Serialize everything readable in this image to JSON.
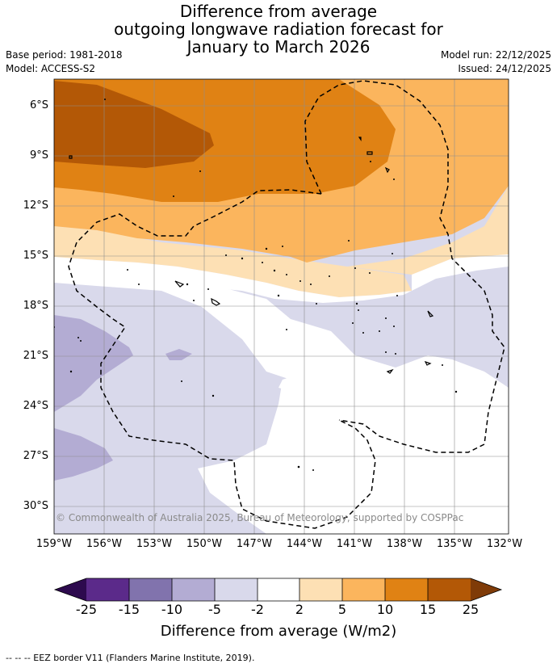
{
  "title": {
    "line1": "Difference from average",
    "line2": "outgoing longwave radiation forecast for",
    "line3": "January to March 2026"
  },
  "meta": {
    "base_period": "Base period: 1981-2018",
    "model": "Model: ACCESS-S2",
    "model_run": "Model run: 22/12/2025",
    "issued": "Issued: 24/12/2025"
  },
  "axes": {
    "latitudes": [
      "6°S",
      "9°S",
      "12°S",
      "15°S",
      "18°S",
      "21°S",
      "24°S",
      "27°S",
      "30°S"
    ],
    "longitudes": [
      "159°W",
      "156°W",
      "153°W",
      "150°W",
      "147°W",
      "144°W",
      "141°W",
      "138°W",
      "135°W",
      "132°W"
    ]
  },
  "copyright": "© Commonwealth of Australia 2025, Bureau of Meteorology, supported by COSPPac",
  "colorbar": {
    "ticks": [
      "-25",
      "-15",
      "-10",
      "-5",
      "-2",
      "2",
      "5",
      "10",
      "15",
      "25"
    ],
    "colors": {
      "below_min": "#2d0a4e",
      "n25_n15": "#5b2a8a",
      "n15_n10": "#8173ad",
      "n10_n5": "#b3acd3",
      "n5_n2": "#d9d9eb",
      "n2_p2": "#ffffff",
      "p2_p5": "#fde0b4",
      "p5_p10": "#fbb55d",
      "p10_p15": "#e08214",
      "p15_p25": "#b35806",
      "above_max": "#7f3b08"
    },
    "label": "Difference from average (W/m2)"
  },
  "footer": "--  --  -- EEZ border V11 (Flanders Marine Institute, 2019)."
}
